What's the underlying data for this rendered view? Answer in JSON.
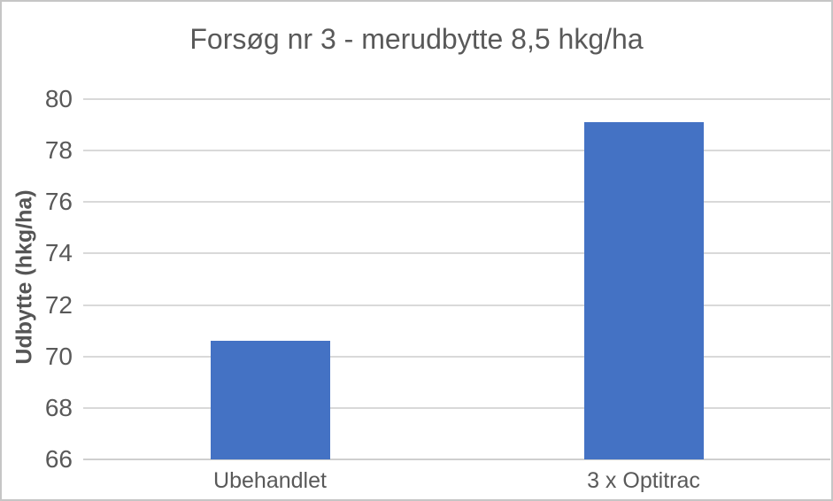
{
  "chart_data": {
    "type": "bar",
    "title": "Forsøg nr 3 - merudbytte 8,5 hkg/ha",
    "categories": [
      "Ubehandlet",
      "3 x Optitrac"
    ],
    "values": [
      70.6,
      79.1
    ],
    "xlabel": "",
    "ylabel": "Udbytte (hkg/ha)",
    "ylim": [
      66,
      80
    ],
    "yticks": [
      66,
      68,
      70,
      72,
      74,
      76,
      78,
      80
    ],
    "grid": true,
    "legend": false,
    "bar_color": "#4472C4",
    "gridline_color": "#D9D9D9",
    "axis_line_color": "#CFCFCF",
    "text_color": "#595959",
    "frame_border_color": "#C6C6C6"
  }
}
